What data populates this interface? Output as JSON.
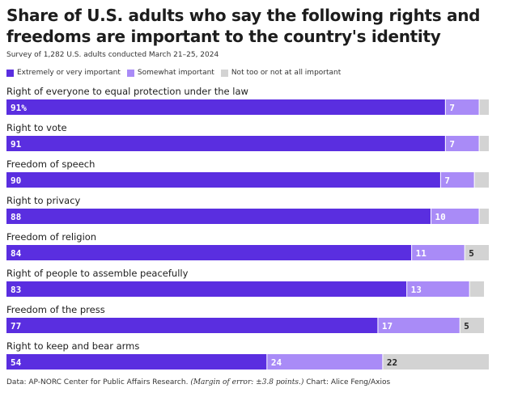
{
  "title": "Share of U.S. adults who say the following rights and freedoms are important to the country's identity",
  "subtitle": "Survey of 1,282 U.S. adults conducted March 21–25, 2024",
  "legend": [
    {
      "name": "Extremely or very important",
      "color": "#5a2ee0"
    },
    {
      "name": "Somewhat important",
      "color": "#a98bf7"
    },
    {
      "name": "Not too or not at all important",
      "color": "#d3d3d3"
    }
  ],
  "footer": {
    "prefix": "Data: AP-NORC Center for Public Affairs Research.",
    "margin": "(Margin of error: ±3.8 points.)",
    "suffix": "Chart: Alice Feng/Axios"
  },
  "chart_data": {
    "type": "bar",
    "orientation": "horizontal",
    "stacked": true,
    "xlim": [
      0,
      100
    ],
    "categories": [
      "Right of everyone to equal protection under the law",
      "Right to vote",
      "Freedom of speech",
      "Right to privacy",
      "Freedom of religion",
      "Right of people to assemble peacefully",
      "Freedom of the press",
      "Right to keep and bear arms"
    ],
    "series": [
      {
        "name": "Extremely or very important",
        "color": "#5a2ee0",
        "values": [
          91,
          91,
          90,
          88,
          84,
          83,
          77,
          54
        ]
      },
      {
        "name": "Somewhat important",
        "color": "#a98bf7",
        "values": [
          7,
          7,
          7,
          10,
          11,
          13,
          17,
          24
        ]
      },
      {
        "name": "Not too or not at all important",
        "color": "#d3d3d3",
        "values": [
          2,
          2,
          3,
          2,
          5,
          3,
          5,
          22
        ]
      }
    ],
    "data_labels": [
      [
        "91%",
        "7",
        ""
      ],
      [
        "91",
        "7",
        ""
      ],
      [
        "90",
        "7",
        ""
      ],
      [
        "88",
        "10",
        ""
      ],
      [
        "84",
        "11",
        "5"
      ],
      [
        "83",
        "13",
        ""
      ],
      [
        "77",
        "17",
        "5"
      ],
      [
        "54",
        "24",
        "22"
      ]
    ]
  }
}
